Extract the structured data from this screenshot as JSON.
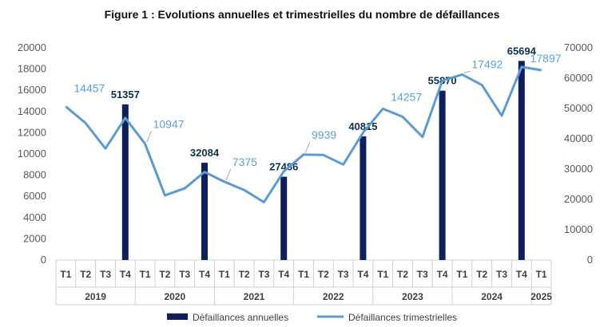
{
  "title": "Figure 1 : Evolutions annuelles et trimestrielles du nombre de défaillances",
  "colors": {
    "bar": "#0d1f5c",
    "line": "#5b9bd5",
    "axis": "#d0d0d0"
  },
  "chart_data": {
    "type": "bar+line",
    "title": "Figure 1 : Evolutions annuelles et trimestrielles du nombre de défaillances",
    "categories": [
      "T1",
      "T2",
      "T3",
      "T4",
      "T1",
      "T2",
      "T3",
      "T4",
      "T1",
      "T2",
      "T3",
      "T4",
      "T1",
      "T2",
      "T3",
      "T4",
      "T1",
      "T2",
      "T3",
      "T4",
      "T1",
      "T2",
      "T3",
      "T4",
      "T1"
    ],
    "years": [
      {
        "label": "2019",
        "span": 4
      },
      {
        "label": "2020",
        "span": 4
      },
      {
        "label": "2021",
        "span": 4
      },
      {
        "label": "2022",
        "span": 4
      },
      {
        "label": "2023",
        "span": 4
      },
      {
        "label": "2024",
        "span": 4
      },
      {
        "label": "2025",
        "span": 1
      }
    ],
    "left_axis": {
      "min": 0,
      "max": 20000,
      "ticks": [
        "0",
        "2000",
        "4000",
        "6000",
        "8000",
        "10000",
        "12000",
        "14000",
        "16000",
        "18000",
        "20000"
      ]
    },
    "right_axis": {
      "min": 0,
      "max": 70000,
      "ticks": [
        "0",
        "10000",
        "20000",
        "30000",
        "40000",
        "50000",
        "60000",
        "70000"
      ]
    },
    "series": [
      {
        "name": "Défaillances annuelles",
        "type": "bar",
        "axis": "right",
        "points": [
          {
            "index": 3,
            "value": 51357,
            "label": "51357"
          },
          {
            "index": 7,
            "value": 32084,
            "label": "32084"
          },
          {
            "index": 11,
            "value": 27486,
            "label": "27486"
          },
          {
            "index": 15,
            "value": 40815,
            "label": "40815"
          },
          {
            "index": 19,
            "value": 55870,
            "label": "55870"
          },
          {
            "index": 23,
            "value": 65694,
            "label": "65694"
          }
        ]
      },
      {
        "name": "Défaillances trimestrielles",
        "type": "line",
        "axis": "left",
        "values": [
          14457,
          12900,
          10500,
          13400,
          10947,
          6100,
          6750,
          8300,
          7375,
          6600,
          5450,
          8350,
          9939,
          9900,
          9000,
          12000,
          14257,
          13500,
          11600,
          16900,
          17492,
          16500,
          13600,
          18200,
          17897
        ],
        "labels": [
          {
            "index": 0,
            "text": "14457"
          },
          {
            "index": 4,
            "text": "10947"
          },
          {
            "index": 8,
            "text": "7375"
          },
          {
            "index": 12,
            "text": "9939"
          },
          {
            "index": 16,
            "text": "14257"
          },
          {
            "index": 20,
            "text": "17492"
          },
          {
            "index": 24,
            "text": "17897"
          }
        ]
      }
    ]
  }
}
